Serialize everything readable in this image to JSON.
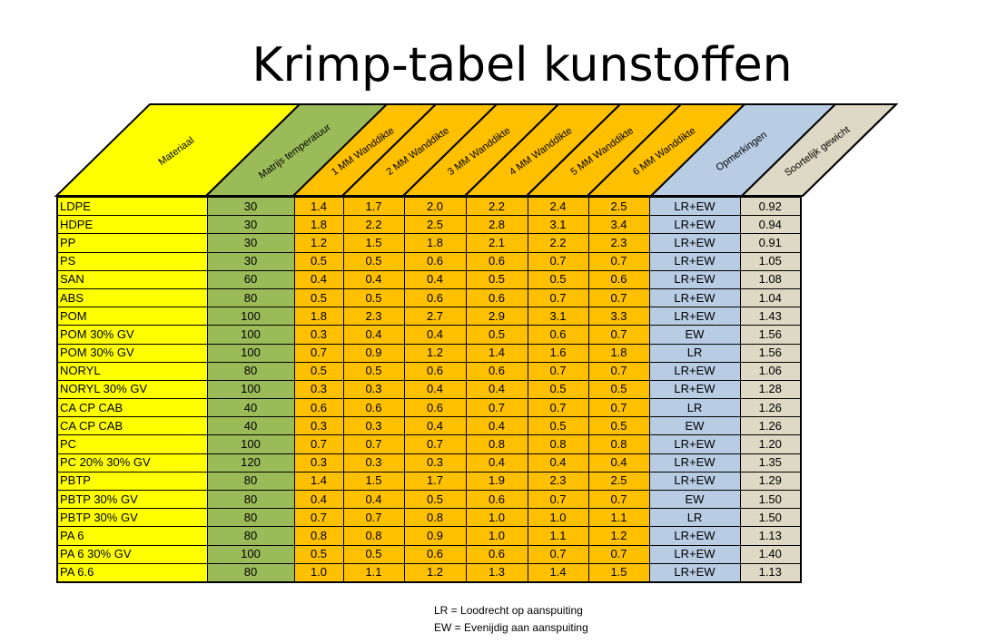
{
  "title": "Krimp-tabel kunstoffen",
  "colors": {
    "material": "#ffff00",
    "temperature": "#9bbb59",
    "wall": "#ffc000",
    "remarks": "#b8cce4",
    "density": "#ddd9c4"
  },
  "headers": [
    "Materiaal",
    "Matrijs temperatuur",
    "1 MM Wanddikte",
    "2 MM Wanddikte",
    "3 MM Wanddikte",
    "4 MM Wanddikte",
    "5 MM Wanddikte",
    "6 MM Wanddikte",
    "Opmerkingen",
    "Soortelijk gewicht"
  ],
  "rows": [
    [
      "LDPE",
      "30",
      "1.4",
      "1.7",
      "2.0",
      "2.2",
      "2.4",
      "2.5",
      "LR+EW",
      "0.92"
    ],
    [
      "HDPE",
      "30",
      "1.8",
      "2.2",
      "2.5",
      "2.8",
      "3.1",
      "3.4",
      "LR+EW",
      "0.94"
    ],
    [
      "PP",
      "30",
      "1.2",
      "1.5",
      "1.8",
      "2.1",
      "2.2",
      "2.3",
      "LR+EW",
      "0.91"
    ],
    [
      "PS",
      "30",
      "0.5",
      "0.5",
      "0.6",
      "0.6",
      "0.7",
      "0.7",
      "LR+EW",
      "1.05"
    ],
    [
      "SAN",
      "60",
      "0.4",
      "0.4",
      "0.4",
      "0.5",
      "0.5",
      "0.6",
      "LR+EW",
      "1.08"
    ],
    [
      "ABS",
      "80",
      "0.5",
      "0.5",
      "0.6",
      "0.6",
      "0.7",
      "0.7",
      "LR+EW",
      "1.04"
    ],
    [
      "POM",
      "100",
      "1.8",
      "2.3",
      "2.7",
      "2.9",
      "3.1",
      "3.3",
      "LR+EW",
      "1.43"
    ],
    [
      "POM 30% GV",
      "100",
      "0.3",
      "0.4",
      "0.4",
      "0.5",
      "0.6",
      "0.7",
      "EW",
      "1.56"
    ],
    [
      "POM 30% GV",
      "100",
      "0.7",
      "0.9",
      "1.2",
      "1.4",
      "1.6",
      "1.8",
      "LR",
      "1.56"
    ],
    [
      "NORYL",
      "80",
      "0.5",
      "0.5",
      "0.6",
      "0.6",
      "0.7",
      "0.7",
      "LR+EW",
      "1.06"
    ],
    [
      "NORYL 30% GV",
      "100",
      "0.3",
      "0.3",
      "0.4",
      "0.4",
      "0.5",
      "0.5",
      "LR+EW",
      "1.28"
    ],
    [
      "CA CP CAB",
      "40",
      "0.6",
      "0.6",
      "0.6",
      "0.7",
      "0.7",
      "0.7",
      "LR",
      "1.26"
    ],
    [
      "CA CP CAB",
      "40",
      "0.3",
      "0.3",
      "0.4",
      "0.4",
      "0.5",
      "0.5",
      "EW",
      "1.26"
    ],
    [
      "PC",
      "100",
      "0.7",
      "0.7",
      "0.7",
      "0.8",
      "0.8",
      "0.8",
      "LR+EW",
      "1.20"
    ],
    [
      "PC 20% 30% GV",
      "120",
      "0.3",
      "0.3",
      "0.3",
      "0.4",
      "0.4",
      "0.4",
      "LR+EW",
      "1.35"
    ],
    [
      "PBTP",
      "80",
      "1.4",
      "1.5",
      "1.7",
      "1.9",
      "2.3",
      "2.5",
      "LR+EW",
      "1.29"
    ],
    [
      "PBTP 30% GV",
      "80",
      "0.4",
      "0.4",
      "0.5",
      "0.6",
      "0.7",
      "0.7",
      "EW",
      "1.50"
    ],
    [
      "PBTP 30% GV",
      "80",
      "0.7",
      "0.7",
      "0.8",
      "1.0",
      "1.0",
      "1.1",
      "LR",
      "1.50"
    ],
    [
      "PA 6",
      "80",
      "0.8",
      "0.8",
      "0.9",
      "1.0",
      "1.1",
      "1.2",
      "LR+EW",
      "1.13"
    ],
    [
      "PA 6 30% GV",
      "100",
      "0.5",
      "0.5",
      "0.6",
      "0.6",
      "0.7",
      "0.7",
      "LR+EW",
      "1.40"
    ],
    [
      "PA 6.6",
      "80",
      "1.0",
      "1.1",
      "1.2",
      "1.3",
      "1.4",
      "1.5",
      "LR+EW",
      "1.13"
    ]
  ],
  "legend": [
    "LR = Loodrecht op aanspuiting",
    "EW = Evenijdig aan aanspuiting"
  ]
}
